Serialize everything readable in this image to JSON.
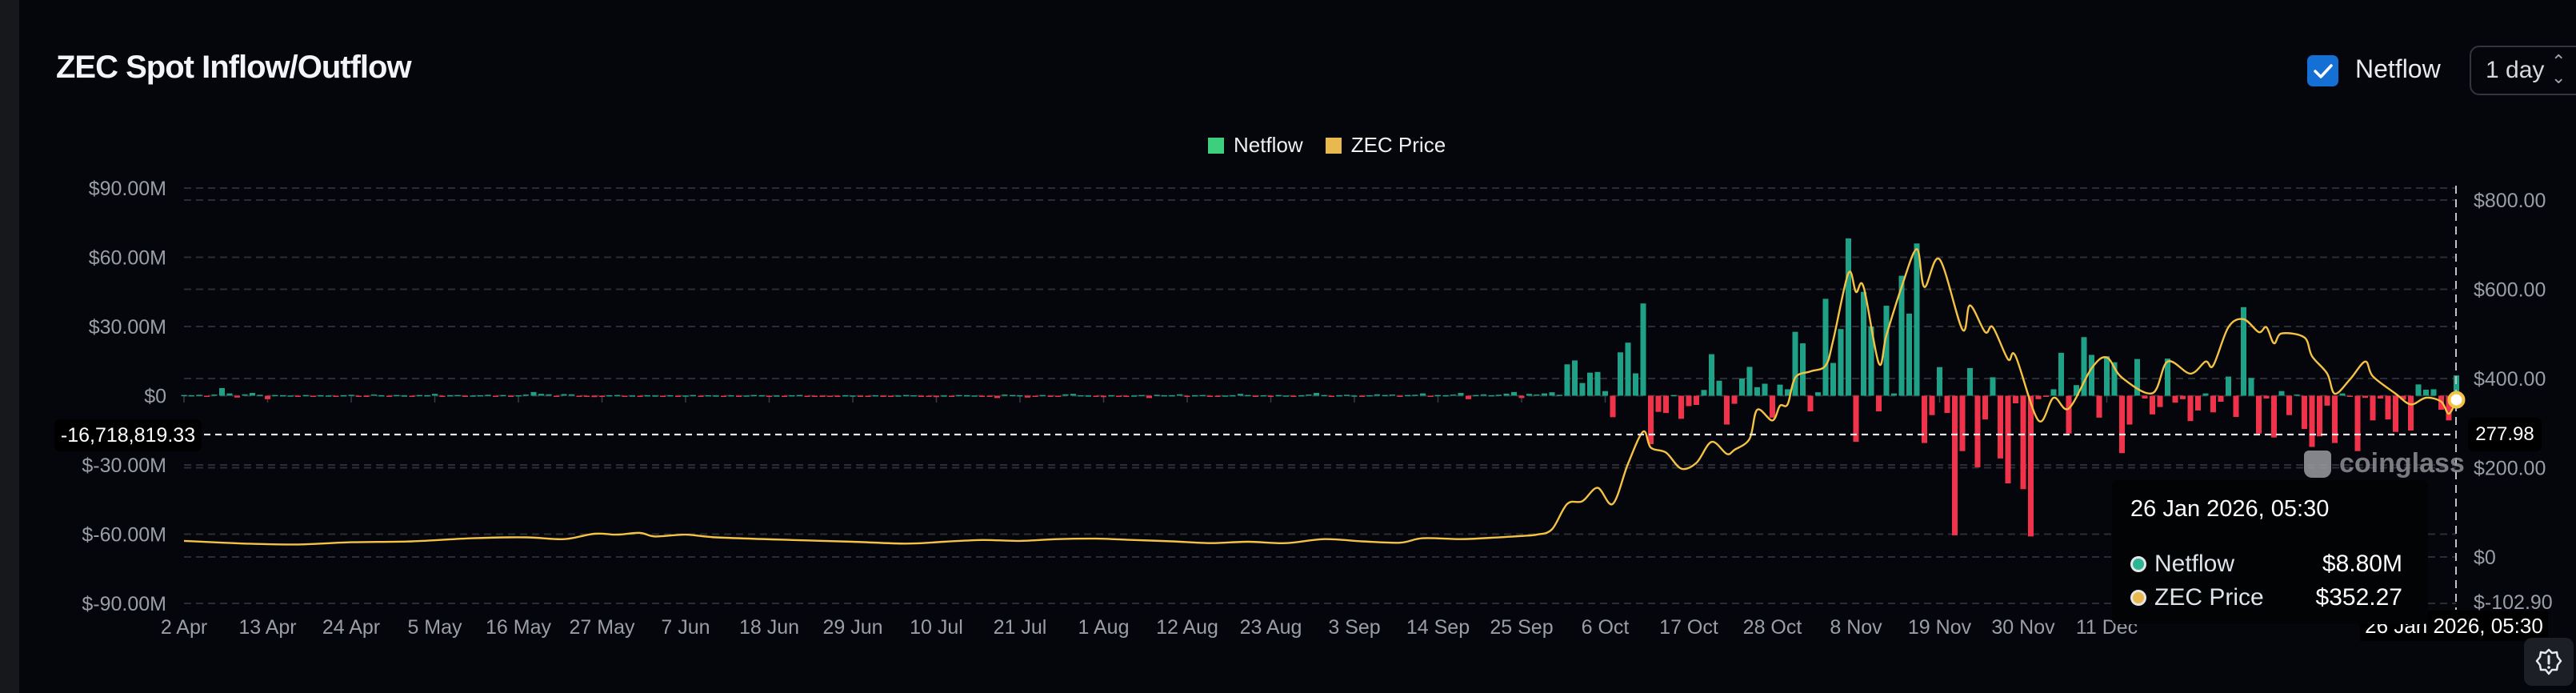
{
  "header": {
    "title": "ZEC Spot Inflow/Outflow",
    "netflow_toggle": {
      "label": "Netflow",
      "checked": true
    },
    "interval_select": {
      "value": "1 day"
    }
  },
  "legend": [
    {
      "label": "Netflow",
      "color": "#3ecf7e"
    },
    {
      "label": "ZEC Price",
      "color": "#e9b84f"
    }
  ],
  "crosshair": {
    "y_left_label": "-16,718,819.33",
    "y_right_label": "277.98",
    "x_label": "26 Jan 2026, 05:30"
  },
  "tooltip": {
    "date": "26 Jan 2026, 05:30",
    "rows": [
      {
        "label": "Netflow",
        "value": "$8.80M",
        "color": "#2bb594"
      },
      {
        "label": "ZEC Price",
        "value": "$352.27",
        "color": "#e9b84f"
      }
    ]
  },
  "watermark": "coinglass",
  "icons": {
    "checkbox": "check-icon",
    "select": "up-down-chevron-icon",
    "settings": "alert-badge-icon"
  },
  "chart_data": {
    "type": "bar+line",
    "title": "",
    "x_range": [
      "2025-04-02",
      "2026-01-26"
    ],
    "x_interval": "1 day",
    "x_tick_labels": [
      "2 Apr",
      "13 Apr",
      "24 Apr",
      "5 May",
      "16 May",
      "27 May",
      "7 Jun",
      "18 Jun",
      "29 Jun",
      "10 Jul",
      "21 Jul",
      "1 Aug",
      "12 Aug",
      "23 Aug",
      "3 Sep",
      "14 Sep",
      "25 Sep",
      "6 Oct",
      "17 Oct",
      "28 Oct",
      "8 Nov",
      "19 Nov",
      "30 Nov",
      "11 Dec"
    ],
    "y_left": {
      "tick_labels": [
        "$90.00M",
        "$60.00M",
        "$30.00M",
        "$0",
        "$-30.00M",
        "$-60.00M",
        "$-90.00M"
      ],
      "ticks": [
        90,
        60,
        30,
        0,
        -30,
        -60,
        -90
      ],
      "unit": "USD millions"
    },
    "y_right": {
      "tick_labels": [
        "$800.00",
        "$600.00",
        "$400.00",
        "$200.00",
        "$0",
        "$-102.90"
      ],
      "ticks": [
        800,
        600,
        400,
        200,
        0,
        -102.9
      ],
      "unit": "USD"
    },
    "grid": true,
    "legend_position": "top-center",
    "colors": {
      "inflow": "#1fa187",
      "outflow": "#f0334a",
      "price": "#f5c344"
    },
    "series": [
      {
        "name": "Netflow",
        "axis": "left",
        "kind": "bar",
        "values": [
          0.3,
          0.2,
          0.4,
          -0.2,
          0.5,
          3.3,
          1.0,
          -0.8,
          0.6,
          1.2,
          0.4,
          -1.5,
          0.3,
          0.2,
          0.1,
          -0.2,
          0.3,
          -0.1,
          0.2,
          0.1,
          -0.3,
          0.2,
          0.4,
          -0.2,
          -0.3,
          0.5,
          0.2,
          -0.2,
          0.3,
          0.1,
          -0.2,
          0.3,
          0.2,
          0.8,
          -0.1,
          0.2,
          0.3,
          -0.3,
          0.1,
          0.2,
          0.4,
          -0.2,
          0.3,
          -0.1,
          0.2,
          0.5,
          1.6,
          0.8,
          0.6,
          -0.3,
          0.7,
          0.6,
          -0.5,
          -0.4,
          -0.6,
          -0.3,
          0.2,
          0.3,
          -0.2,
          0.1,
          -0.4,
          0.2,
          0.1,
          -0.3,
          0.2,
          -0.4,
          0.1,
          0.3,
          -0.2,
          0.2,
          0.1,
          -0.3,
          0.2,
          -0.4,
          0.1,
          0.3,
          0.2,
          -0.3,
          0.1,
          -0.2,
          0.2,
          0.3,
          -0.3,
          -0.4,
          -0.5,
          -0.3,
          -0.4,
          0.2,
          0.1,
          -0.3,
          -0.4,
          0.2,
          -0.2,
          -0.5,
          0.1,
          0.3,
          0.2,
          -0.3,
          -0.2,
          -0.6,
          0.1,
          -0.2,
          0.3,
          0.2,
          0.1,
          -0.2,
          -0.3,
          -1.0,
          0.5,
          0.3,
          0.2,
          -0.8,
          -0.4,
          0.3,
          -0.3,
          -0.2,
          0.6,
          0.8,
          0.2,
          0.1,
          -0.5,
          -0.6,
          0.2,
          -0.3,
          -0.4,
          0.1,
          0.3,
          -1.0,
          0.4,
          0.2,
          0.2,
          0.6,
          -0.3,
          0.2,
          0.3,
          -0.2,
          -0.5,
          0.1,
          0.2,
          0.8,
          0.3,
          -0.3,
          0.2,
          -0.2,
          0.3,
          0.1,
          -0.2,
          0.2,
          0.5,
          1.2,
          0.3,
          -0.2,
          0.2,
          0.4,
          0.1,
          -0.3,
          0.2,
          0.6,
          0.3,
          0.5,
          -0.2,
          0.3,
          0.4,
          1.0,
          -0.4,
          0.3,
          0.2,
          0.5,
          1.2,
          -1.5,
          0.3,
          0.6,
          0.2,
          0.4,
          0.9,
          1.6,
          -1.0,
          0.8,
          0.5,
          1.0,
          1.5,
          0.4,
          13.6,
          15.3,
          5.5,
          10,
          10.3,
          2,
          -9.3,
          18.8,
          23,
          9.7,
          40,
          -21,
          -7,
          -7.5,
          0.3,
          -10,
          -4.5,
          -4,
          2.5,
          18,
          6.5,
          -12.5,
          -3.5,
          7.5,
          12.5,
          3.7,
          5.2,
          -9.5,
          4.8,
          2.8,
          27.7,
          22.7,
          -6.8,
          1.5,
          42,
          14.2,
          28.9,
          68.2,
          -20,
          45,
          30,
          -6.8,
          39,
          1,
          52,
          35.6,
          66,
          -20.5,
          -8.4,
          12.4,
          -7.5,
          -60.5,
          -24,
          12,
          -31,
          -10.3,
          8,
          -27.2,
          -38,
          -3.3,
          -40.5,
          -61,
          -1.5,
          -0.5,
          2.8,
          18.6,
          -16.4,
          4.6,
          25.4,
          17.7,
          -9.5,
          17.1,
          14.5,
          -24.9,
          -12.5,
          15.9,
          -1.2,
          -8.1,
          -4.9,
          16.1,
          -3,
          -1.5,
          -11,
          -6.4,
          1,
          -7.2,
          -2.6,
          8.3,
          -9.2,
          38.4,
          7.7,
          -16.4,
          -1.2,
          -18.1,
          2,
          -8.4,
          0.5,
          -14.4,
          -22.2,
          -17.6,
          -4.3,
          -20.5,
          1,
          -0.5,
          -24,
          -0.9,
          -10.7,
          -1.2,
          -10.3,
          -15.7,
          -1.7,
          -15.1,
          4.9,
          2.6,
          2.8,
          -6.1,
          -10.7,
          8.8
        ]
      },
      {
        "name": "ZEC Price",
        "axis": "right",
        "kind": "line",
        "points": [
          [
            "2025-04-02",
            36
          ],
          [
            "2025-04-10",
            30
          ],
          [
            "2025-04-17",
            28
          ],
          [
            "2025-04-24",
            33
          ],
          [
            "2025-05-02",
            35
          ],
          [
            "2025-05-10",
            42
          ],
          [
            "2025-05-17",
            44
          ],
          [
            "2025-05-22",
            40
          ],
          [
            "2025-05-26",
            52
          ],
          [
            "2025-05-29",
            50
          ],
          [
            "2025-06-01",
            54
          ],
          [
            "2025-06-03",
            46
          ],
          [
            "2025-06-07",
            50
          ],
          [
            "2025-06-11",
            44
          ],
          [
            "2025-06-21",
            38
          ],
          [
            "2025-06-29",
            34
          ],
          [
            "2025-07-06",
            30
          ],
          [
            "2025-07-11",
            34
          ],
          [
            "2025-07-16",
            38
          ],
          [
            "2025-07-21",
            36
          ],
          [
            "2025-07-26",
            40
          ],
          [
            "2025-07-31",
            41
          ],
          [
            "2025-08-05",
            38
          ],
          [
            "2025-08-10",
            35
          ],
          [
            "2025-08-15",
            31
          ],
          [
            "2025-08-20",
            34
          ],
          [
            "2025-08-25",
            31
          ],
          [
            "2025-08-30",
            40
          ],
          [
            "2025-09-04",
            35
          ],
          [
            "2025-09-09",
            32
          ],
          [
            "2025-09-12",
            42
          ],
          [
            "2025-09-17",
            40
          ],
          [
            "2025-09-21",
            43
          ],
          [
            "2025-09-25",
            47
          ],
          [
            "2025-09-27",
            50
          ],
          [
            "2025-09-29",
            62
          ],
          [
            "2025-10-01",
            119
          ],
          [
            "2025-10-03",
            125
          ],
          [
            "2025-10-05",
            155
          ],
          [
            "2025-10-07",
            119
          ],
          [
            "2025-10-09",
            209
          ],
          [
            "2025-10-11",
            281
          ],
          [
            "2025-10-12",
            245
          ],
          [
            "2025-10-14",
            234
          ],
          [
            "2025-10-16",
            198
          ],
          [
            "2025-10-18",
            211
          ],
          [
            "2025-10-20",
            258
          ],
          [
            "2025-10-22",
            231
          ],
          [
            "2025-10-23",
            240
          ],
          [
            "2025-10-25",
            265
          ],
          [
            "2025-10-26",
            330
          ],
          [
            "2025-10-28",
            306
          ],
          [
            "2025-10-29",
            339
          ],
          [
            "2025-10-30",
            342
          ],
          [
            "2025-10-31",
            402
          ],
          [
            "2025-11-02",
            416
          ],
          [
            "2025-11-04",
            429
          ],
          [
            "2025-11-05",
            486
          ],
          [
            "2025-11-07",
            636
          ],
          [
            "2025-11-08",
            594
          ],
          [
            "2025-11-09",
            605
          ],
          [
            "2025-11-11",
            434
          ],
          [
            "2025-11-12",
            497
          ],
          [
            "2025-11-14",
            605
          ],
          [
            "2025-11-16",
            690
          ],
          [
            "2025-11-17",
            605
          ],
          [
            "2025-11-19",
            667
          ],
          [
            "2025-11-22",
            510
          ],
          [
            "2025-11-23",
            564
          ],
          [
            "2025-11-25",
            504
          ],
          [
            "2025-11-26",
            515
          ],
          [
            "2025-11-28",
            443
          ],
          [
            "2025-11-29",
            450
          ],
          [
            "2025-12-02",
            306
          ],
          [
            "2025-12-04",
            357
          ],
          [
            "2025-12-06",
            333
          ],
          [
            "2025-12-09",
            423
          ],
          [
            "2025-12-11",
            447
          ],
          [
            "2025-12-13",
            402
          ],
          [
            "2025-12-17",
            367
          ],
          [
            "2025-12-19",
            438
          ],
          [
            "2025-12-22",
            411
          ],
          [
            "2025-12-24",
            438
          ],
          [
            "2025-12-25",
            429
          ],
          [
            "2025-12-27",
            515
          ],
          [
            "2025-12-29",
            533
          ],
          [
            "2025-12-31",
            504
          ],
          [
            "2026-01-01",
            515
          ],
          [
            "2026-01-02",
            479
          ],
          [
            "2026-01-03",
            501
          ],
          [
            "2026-01-06",
            492
          ],
          [
            "2026-01-07",
            450
          ],
          [
            "2026-01-09",
            411
          ],
          [
            "2026-01-10",
            366
          ],
          [
            "2026-01-12",
            398
          ],
          [
            "2026-01-14",
            438
          ],
          [
            "2026-01-15",
            405
          ],
          [
            "2026-01-18",
            366
          ],
          [
            "2026-01-20",
            342
          ],
          [
            "2026-01-22",
            357
          ],
          [
            "2026-01-24",
            348
          ],
          [
            "2026-01-25",
            321
          ],
          [
            "2026-01-26",
            352.27
          ]
        ]
      }
    ]
  }
}
